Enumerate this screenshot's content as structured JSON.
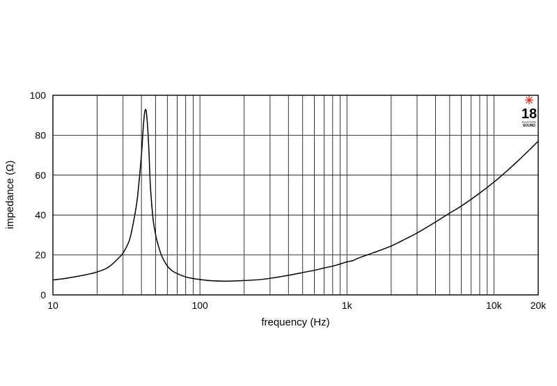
{
  "chart_data": {
    "type": "line",
    "xlabel": "frequency (Hz)",
    "ylabel": "impedance (Ω)",
    "x_scale": "log",
    "xlim": [
      10,
      20000
    ],
    "ylim": [
      0,
      100
    ],
    "grid": true,
    "x_ticks": [
      {
        "value": 10,
        "label": "10"
      },
      {
        "value": 100,
        "label": "100"
      },
      {
        "value": 1000,
        "label": "1k"
      },
      {
        "value": 10000,
        "label": "10k"
      },
      {
        "value": 20000,
        "label": "20k"
      }
    ],
    "y_ticks": [
      {
        "value": 0,
        "label": "0"
      },
      {
        "value": 20,
        "label": "20"
      },
      {
        "value": 40,
        "label": "40"
      },
      {
        "value": 60,
        "label": "60"
      },
      {
        "value": 80,
        "label": "80"
      },
      {
        "value": 100,
        "label": "100"
      }
    ],
    "series": [
      {
        "x": [
          10,
          12,
          15,
          18,
          20,
          23,
          25,
          28,
          30,
          33,
          35,
          37,
          38,
          40,
          41,
          42,
          43,
          44,
          45,
          46,
          48,
          50,
          52,
          55,
          60,
          65,
          70,
          80,
          90,
          100,
          120,
          150,
          200,
          250,
          300,
          400,
          500,
          600,
          700,
          800,
          900,
          1000,
          1100,
          1200,
          1500,
          2000,
          2500,
          3000,
          4000,
          5000,
          6000,
          8000,
          10000,
          12000,
          15000,
          20000
        ],
        "y": [
          7.5,
          8.2,
          9.4,
          10.6,
          11.5,
          13.2,
          15.0,
          18.5,
          21.0,
          27.0,
          35.0,
          45.0,
          52.0,
          70.0,
          82.0,
          91.0,
          92.5,
          85.0,
          72.0,
          55.0,
          38.0,
          30.0,
          25.0,
          19.5,
          14.5,
          12.0,
          10.7,
          9.0,
          8.2,
          7.7,
          7.1,
          6.9,
          7.2,
          7.6,
          8.3,
          9.8,
          11.2,
          12.3,
          13.5,
          14.4,
          15.5,
          16.5,
          17.2,
          18.5,
          21.0,
          24.5,
          28.0,
          31.0,
          36.5,
          41.0,
          44.5,
          51.0,
          56.5,
          61.5,
          68.0,
          77.0
        ]
      }
    ]
  },
  "logo": {
    "number": "18",
    "line1": "EIGHTEEN",
    "line2": "SOUND"
  }
}
